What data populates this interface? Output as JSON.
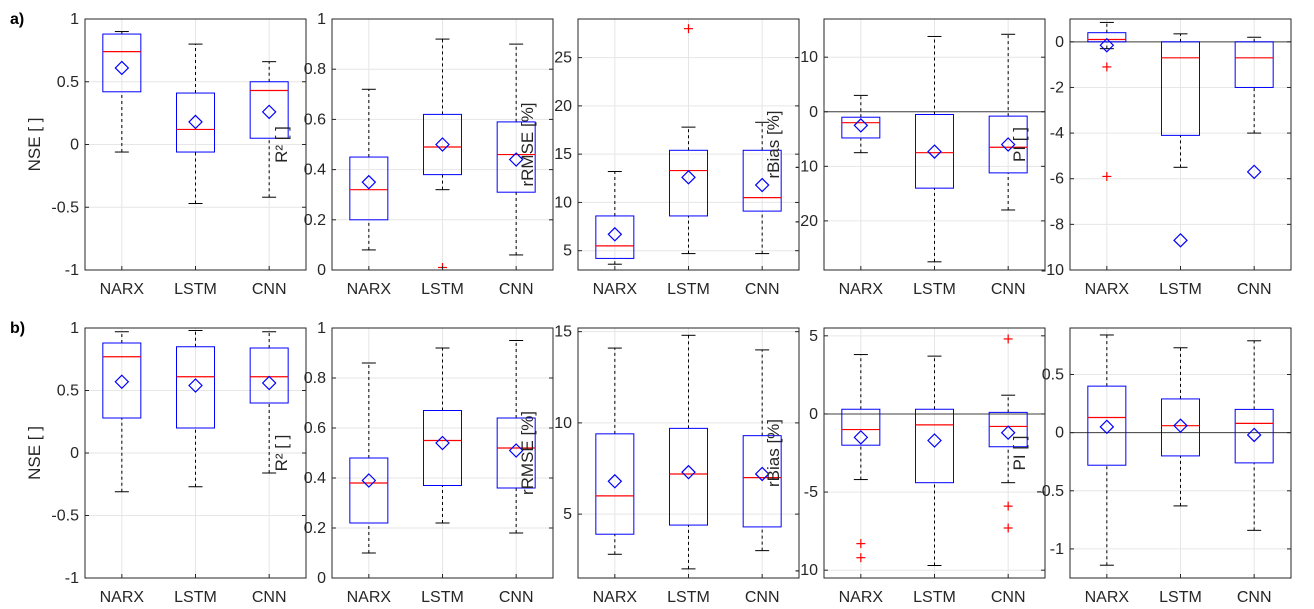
{
  "colors": {
    "box": "#0000ff",
    "median": "#ff0000",
    "mean": "#0000ff",
    "outlier": "#ff0000",
    "whisker": "#000000",
    "grid": "#e6e6e6",
    "zero_line": "#404040"
  },
  "chart_data": [
    {
      "row": "a)",
      "type": "box",
      "ylabel": "NSE [ ]",
      "categories": [
        "NARX",
        "LSTM",
        "CNN"
      ],
      "ylim": [
        -1,
        1
      ],
      "yticks": [
        -1,
        -0.5,
        0,
        0.5,
        1
      ],
      "ytick_labels": [
        "-1",
        "-0.5",
        "0",
        "0.5",
        "1"
      ],
      "zero_line": false,
      "boxes": [
        {
          "min": -0.06,
          "q1": 0.42,
          "median": 0.74,
          "q3": 0.88,
          "max": 0.9,
          "mean": 0.61,
          "outliers": []
        },
        {
          "min": -0.47,
          "q1": -0.06,
          "median": 0.12,
          "q3": 0.41,
          "max": 0.8,
          "mean": 0.18,
          "outliers": []
        },
        {
          "min": -0.42,
          "q1": 0.05,
          "median": 0.43,
          "q3": 0.5,
          "max": 0.66,
          "mean": 0.26,
          "outliers": []
        }
      ]
    },
    {
      "row": "",
      "type": "box",
      "ylabel": "R² [ ]",
      "categories": [
        "NARX",
        "LSTM",
        "CNN"
      ],
      "ylim": [
        0,
        1
      ],
      "yticks": [
        0,
        0.2,
        0.4,
        0.6,
        0.8,
        1
      ],
      "ytick_labels": [
        "0",
        "0.2",
        "0.4",
        "0.6",
        "0.8",
        "1"
      ],
      "zero_line": false,
      "boxes": [
        {
          "min": 0.08,
          "q1": 0.2,
          "median": 0.32,
          "q3": 0.45,
          "max": 0.72,
          "mean": 0.35,
          "outliers": []
        },
        {
          "min": 0.32,
          "q1": 0.38,
          "median": 0.49,
          "q3": 0.62,
          "max": 0.92,
          "mean": 0.5,
          "outliers": [
            0.01
          ]
        },
        {
          "min": 0.06,
          "q1": 0.31,
          "median": 0.46,
          "q3": 0.59,
          "max": 0.9,
          "mean": 0.44,
          "outliers": []
        }
      ]
    },
    {
      "row": "",
      "type": "box",
      "ylabel": "rRMSE [%]",
      "categories": [
        "NARX",
        "LSTM",
        "CNN"
      ],
      "ylim": [
        3,
        29
      ],
      "yticks": [
        5,
        10,
        15,
        20,
        25
      ],
      "ytick_labels": [
        "5",
        "10",
        "15",
        "20",
        "25"
      ],
      "zero_line": false,
      "boxes": [
        {
          "min": 3.6,
          "q1": 4.2,
          "median": 5.5,
          "q3": 8.6,
          "max": 13.2,
          "mean": 6.7,
          "outliers": []
        },
        {
          "min": 4.7,
          "q1": 8.6,
          "median": 13.3,
          "q3": 15.4,
          "max": 17.8,
          "mean": 12.6,
          "outliers": [
            28
          ]
        },
        {
          "min": 4.7,
          "q1": 9.1,
          "median": 10.5,
          "q3": 15.4,
          "max": 18.3,
          "mean": 11.8,
          "outliers": []
        }
      ]
    },
    {
      "row": "",
      "type": "box",
      "ylabel": "rBias [%]",
      "categories": [
        "NARX",
        "LSTM",
        "CNN"
      ],
      "ylim": [
        -29,
        17
      ],
      "yticks": [
        -20,
        -10,
        0,
        10
      ],
      "ytick_labels": [
        "-20",
        "-10",
        "0",
        "10"
      ],
      "zero_line": true,
      "boxes": [
        {
          "min": -7.5,
          "q1": -4.8,
          "median": -2,
          "q3": -1,
          "max": 3,
          "mean": -2.5,
          "outliers": []
        },
        {
          "min": -27.5,
          "q1": -14,
          "median": -7.5,
          "q3": -0.5,
          "max": 13.8,
          "mean": -7.3,
          "outliers": []
        },
        {
          "min": -18,
          "q1": -11.2,
          "median": -6.5,
          "q3": -0.8,
          "max": 14.2,
          "mean": -6,
          "outliers": []
        }
      ]
    },
    {
      "row": "",
      "type": "box",
      "ylabel": "PI [ ]",
      "categories": [
        "NARX",
        "LSTM",
        "CNN"
      ],
      "ylim": [
        -10,
        1
      ],
      "yticks": [
        -10,
        -8,
        -6,
        -4,
        -2,
        0
      ],
      "ytick_labels": [
        "-10",
        "-8",
        "-6",
        "-4",
        "-2",
        "0"
      ],
      "zero_line": true,
      "boxes": [
        {
          "min": -0.3,
          "q1": 0,
          "median": 0.1,
          "q3": 0.4,
          "max": 0.85,
          "mean": -0.15,
          "outliers": [
            -1.1,
            -5.9
          ]
        },
        {
          "min": -5.5,
          "q1": -4.1,
          "median": -0.7,
          "q3": 0,
          "max": 0.35,
          "mean": -8.7,
          "outliers": []
        },
        {
          "min": -4,
          "q1": -2,
          "median": -0.7,
          "q3": 0,
          "max": 0.2,
          "mean": -5.7,
          "outliers": []
        }
      ]
    },
    {
      "row": "b)",
      "type": "box",
      "ylabel": "NSE [ ]",
      "categories": [
        "NARX",
        "LSTM",
        "CNN"
      ],
      "ylim": [
        -1,
        1
      ],
      "yticks": [
        -1,
        -0.5,
        0,
        0.5,
        1
      ],
      "ytick_labels": [
        "-1",
        "-0.5",
        "0",
        "0.5",
        "1"
      ],
      "zero_line": false,
      "boxes": [
        {
          "min": -0.31,
          "q1": 0.28,
          "median": 0.77,
          "q3": 0.88,
          "max": 0.97,
          "mean": 0.57,
          "outliers": []
        },
        {
          "min": -0.27,
          "q1": 0.2,
          "median": 0.61,
          "q3": 0.85,
          "max": 0.98,
          "mean": 0.54,
          "outliers": []
        },
        {
          "min": -0.16,
          "q1": 0.4,
          "median": 0.61,
          "q3": 0.84,
          "max": 0.97,
          "mean": 0.56,
          "outliers": []
        }
      ]
    },
    {
      "row": "",
      "type": "box",
      "ylabel": "R² [ ]",
      "categories": [
        "NARX",
        "LSTM",
        "CNN"
      ],
      "ylim": [
        0,
        1
      ],
      "yticks": [
        0,
        0.2,
        0.4,
        0.6,
        0.8,
        1
      ],
      "ytick_labels": [
        "0",
        "0.2",
        "0.4",
        "0.6",
        "0.8",
        "1"
      ],
      "zero_line": false,
      "boxes": [
        {
          "min": 0.1,
          "q1": 0.22,
          "median": 0.38,
          "q3": 0.48,
          "max": 0.86,
          "mean": 0.39,
          "outliers": []
        },
        {
          "min": 0.22,
          "q1": 0.37,
          "median": 0.55,
          "q3": 0.67,
          "max": 0.92,
          "mean": 0.54,
          "outliers": []
        },
        {
          "min": 0.18,
          "q1": 0.36,
          "median": 0.52,
          "q3": 0.64,
          "max": 0.95,
          "mean": 0.51,
          "outliers": []
        }
      ]
    },
    {
      "row": "",
      "type": "box",
      "ylabel": "rRMSE [%]",
      "categories": [
        "NARX",
        "LSTM",
        "CNN"
      ],
      "ylim": [
        1.5,
        15.2
      ],
      "yticks": [
        5,
        10,
        15
      ],
      "ytick_labels": [
        "5",
        "10",
        "15"
      ],
      "zero_line": false,
      "boxes": [
        {
          "min": 2.8,
          "q1": 3.9,
          "median": 6,
          "q3": 9.4,
          "max": 14.1,
          "mean": 6.8,
          "outliers": []
        },
        {
          "min": 2,
          "q1": 4.4,
          "median": 7.2,
          "q3": 9.7,
          "max": 14.8,
          "mean": 7.3,
          "outliers": []
        },
        {
          "min": 3,
          "q1": 4.3,
          "median": 7,
          "q3": 9.3,
          "max": 14,
          "mean": 7.2,
          "outliers": []
        }
      ]
    },
    {
      "row": "",
      "type": "box",
      "ylabel": "rBias [%]",
      "categories": [
        "NARX",
        "LSTM",
        "CNN"
      ],
      "ylim": [
        -10.5,
        5.5
      ],
      "yticks": [
        -10,
        -5,
        0,
        5
      ],
      "ytick_labels": [
        "-10",
        "-5",
        "0",
        "5"
      ],
      "zero_line": true,
      "boxes": [
        {
          "min": -4.2,
          "q1": -2,
          "median": -1,
          "q3": 0.3,
          "max": 3.8,
          "mean": -1.5,
          "outliers": [
            -8.3,
            -9.2
          ]
        },
        {
          "min": -9.7,
          "q1": -4.4,
          "median": -0.7,
          "q3": 0.3,
          "max": 3.7,
          "mean": -1.7,
          "outliers": []
        },
        {
          "min": -4.4,
          "q1": -2.1,
          "median": -0.8,
          "q3": 0.1,
          "max": 1.2,
          "mean": -1.2,
          "outliers": [
            4.8,
            -5.9,
            -7.3
          ]
        }
      ]
    },
    {
      "row": "",
      "type": "box",
      "ylabel": "PI [ ]",
      "categories": [
        "NARX",
        "LSTM",
        "CNN"
      ],
      "ylim": [
        -1.25,
        0.9
      ],
      "yticks": [
        -1,
        -0.5,
        0,
        0.5
      ],
      "ytick_labels": [
        "-1",
        "-0.5",
        "0",
        "0.5"
      ],
      "zero_line": true,
      "boxes": [
        {
          "min": -1.14,
          "q1": -0.28,
          "median": 0.13,
          "q3": 0.4,
          "max": 0.84,
          "mean": 0.05,
          "outliers": []
        },
        {
          "min": -0.63,
          "q1": -0.2,
          "median": 0.06,
          "q3": 0.29,
          "max": 0.73,
          "mean": 0.06,
          "outliers": []
        },
        {
          "min": -0.84,
          "q1": -0.26,
          "median": 0.08,
          "q3": 0.2,
          "max": 0.79,
          "mean": -0.02,
          "outliers": []
        }
      ]
    }
  ]
}
